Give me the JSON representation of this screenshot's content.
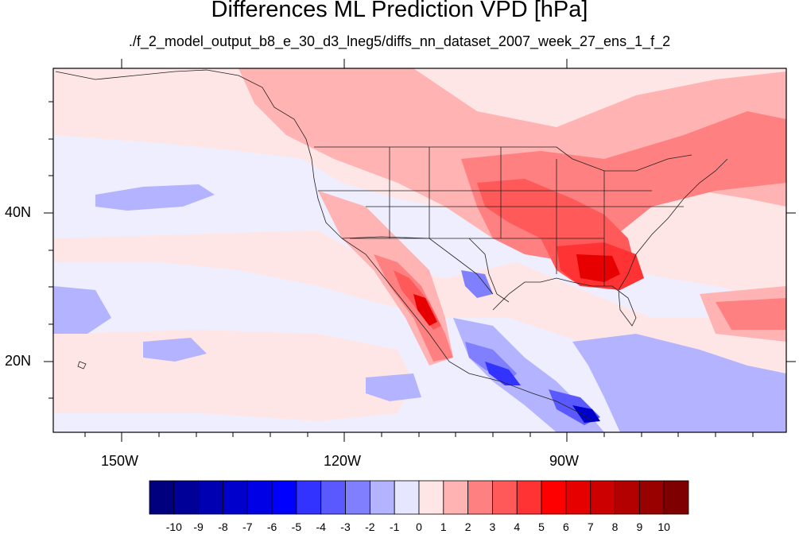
{
  "title": "Differences ML Prediction VPD [hPa]",
  "subtitle": "./f_2_model_output_b8_e_30_d3_lneg5/diffs_nn_dataset_2007_week_27_ens_1_f_2",
  "lat_labels": [
    "40N",
    "20N"
  ],
  "lon_labels": [
    "150W",
    "120W",
    "90W"
  ],
  "colorbar": {
    "labels": [
      "-10",
      "-9",
      "-8",
      "-7",
      "-6",
      "-5",
      "-4",
      "-3",
      "-2",
      "-1",
      "0",
      "1",
      "2",
      "3",
      "4",
      "5",
      "6",
      "7",
      "8",
      "9",
      "10"
    ],
    "colors": [
      "#00007f",
      "#000099",
      "#0000b3",
      "#0000cc",
      "#0000e6",
      "#0000ff",
      "#3333ff",
      "#5959ff",
      "#8080ff",
      "#b3b3ff",
      "#e6e6ff",
      "#ffe6e6",
      "#ffb3b3",
      "#ff8080",
      "#ff5959",
      "#ff3333",
      "#ff0000",
      "#e60000",
      "#cc0000",
      "#b30000",
      "#990000",
      "#7f0000"
    ]
  },
  "palette": {
    "base_pos": "#ffe6e6",
    "base_neg": "#e6e6ff",
    "red1": "#ffb3b3",
    "red2": "#ff8080",
    "red3": "#ff5959",
    "red4": "#ff3333",
    "red5": "#e60000",
    "blue1": "#b3b3ff",
    "blue2": "#8080ff",
    "blue3": "#3333ff",
    "blue4": "#0000cc"
  }
}
